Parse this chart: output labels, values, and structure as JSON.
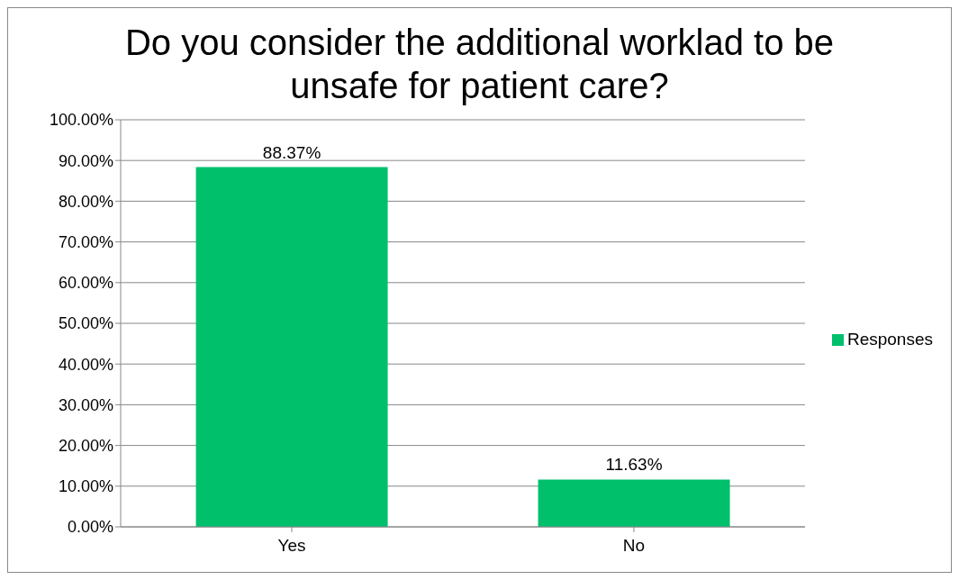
{
  "chart_data": {
    "type": "bar",
    "title": "Do you consider the additional worklad to be unsafe for patient care?",
    "categories": [
      "Yes",
      "No"
    ],
    "series": [
      {
        "name": "Responses",
        "color": "#00c06b",
        "values": [
          88.37,
          11.63
        ],
        "value_labels": [
          "88.37%",
          "11.63%"
        ]
      }
    ],
    "ylim": [
      0,
      100
    ],
    "yticks": [
      {
        "value": 0,
        "label": "0.00%"
      },
      {
        "value": 10,
        "label": "10.00%"
      },
      {
        "value": 20,
        "label": "20.00%"
      },
      {
        "value": 30,
        "label": "30.00%"
      },
      {
        "value": 40,
        "label": "40.00%"
      },
      {
        "value": 50,
        "label": "50.00%"
      },
      {
        "value": 60,
        "label": "60.00%"
      },
      {
        "value": 70,
        "label": "70.00%"
      },
      {
        "value": 80,
        "label": "80.00%"
      },
      {
        "value": 90,
        "label": "90.00%"
      },
      {
        "value": 100,
        "label": "100.00%"
      }
    ],
    "grid": "y",
    "legend": "right"
  }
}
